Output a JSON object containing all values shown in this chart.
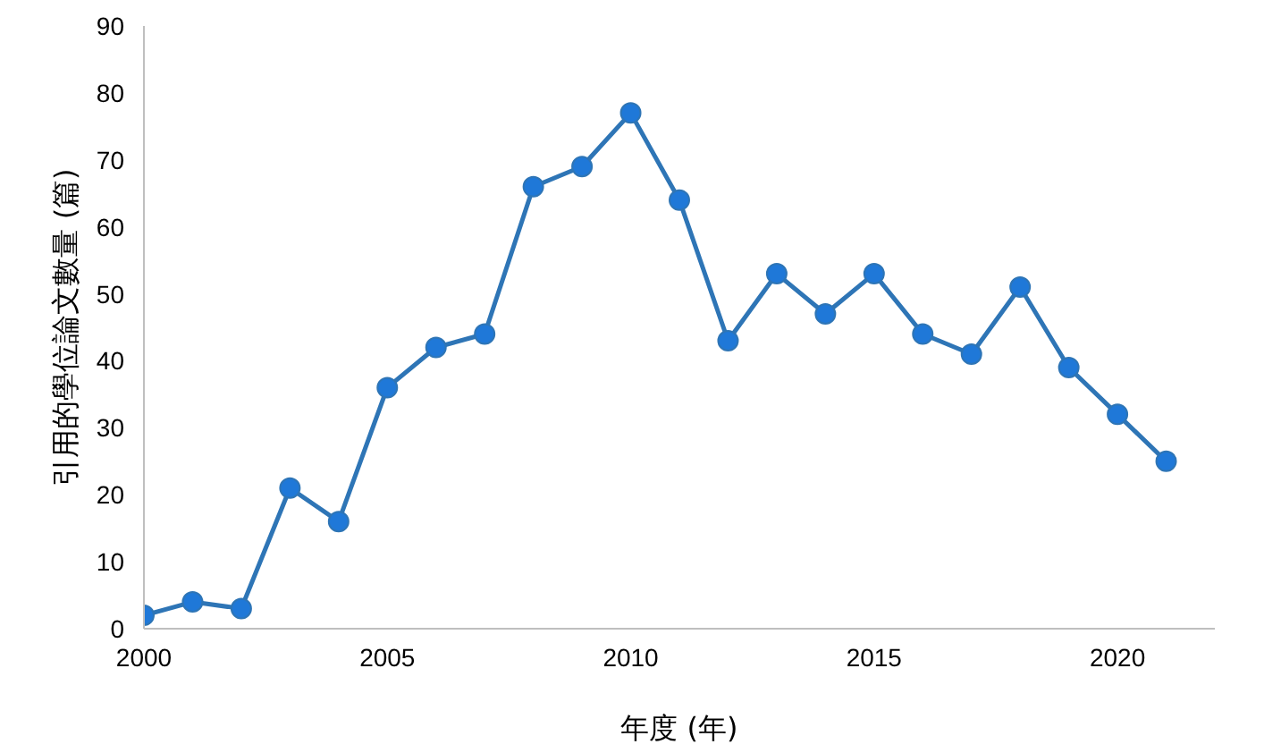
{
  "chart_data": {
    "type": "line",
    "xlabel": "年度 (年)",
    "ylabel": "引用的學位論文數量 (篇)",
    "x": [
      2000,
      2001,
      2002,
      2003,
      2004,
      2005,
      2006,
      2007,
      2008,
      2009,
      2010,
      2011,
      2012,
      2013,
      2014,
      2015,
      2016,
      2017,
      2018,
      2019,
      2020,
      2021
    ],
    "series": [
      {
        "color": "#2e75b6",
        "values": [
          2,
          4,
          3,
          21,
          16,
          36,
          42,
          44,
          66,
          69,
          77,
          64,
          43,
          53,
          47,
          53,
          44,
          41,
          51,
          39,
          32,
          25
        ]
      }
    ],
    "xlim": [
      2000,
      2022
    ],
    "xticks": [
      2000,
      2005,
      2010,
      2015,
      2020
    ],
    "ylim": [
      0,
      90
    ],
    "yticks": [
      0,
      10,
      20,
      30,
      40,
      50,
      60,
      70,
      80,
      90
    ],
    "grid": false,
    "marker": "circle",
    "line_style": "solid"
  }
}
